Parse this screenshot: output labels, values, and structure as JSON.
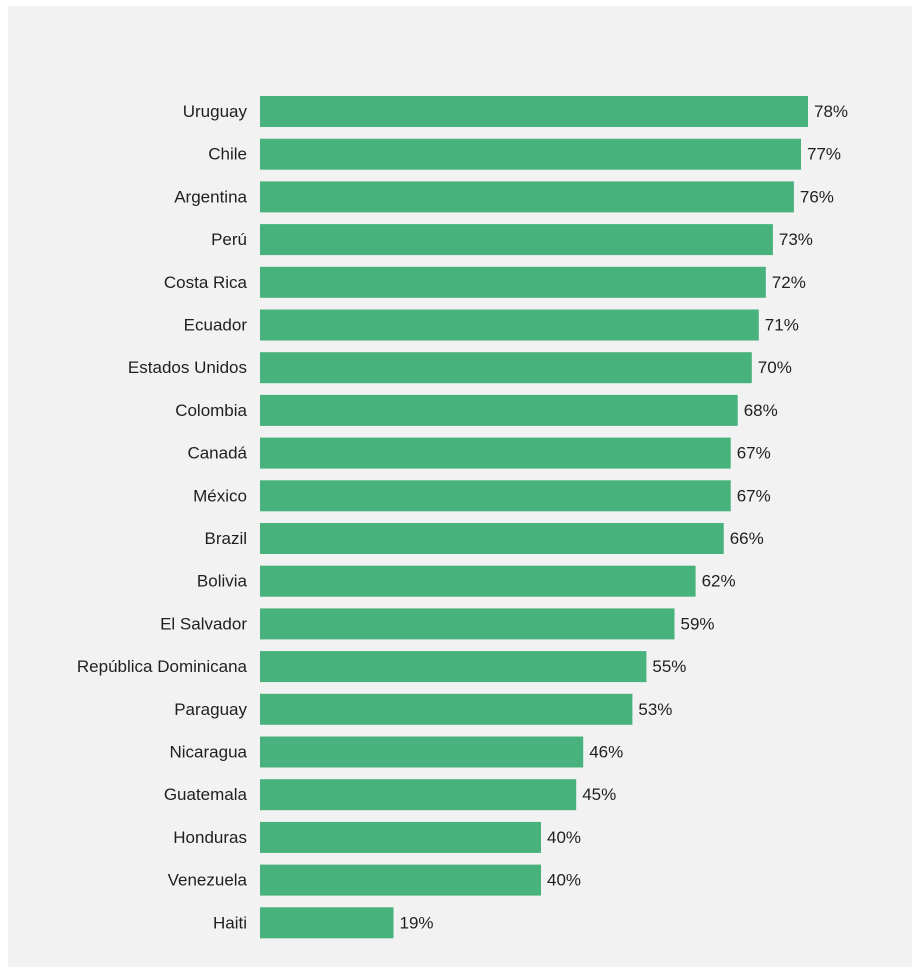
{
  "chart_data": {
    "type": "bar",
    "orientation": "horizontal",
    "categories": [
      "Uruguay",
      "Chile",
      "Argentina",
      "Perú",
      "Costa Rica",
      "Ecuador",
      "Estados Unidos",
      "Colombia",
      "Canadá",
      "México",
      "Brazil",
      "Bolivia",
      "El Salvador",
      "República Dominicana",
      "Paraguay",
      "Nicaragua",
      "Guatemala",
      "Honduras",
      "Venezuela",
      "Haiti"
    ],
    "values": [
      78,
      77,
      76,
      73,
      72,
      71,
      70,
      68,
      67,
      67,
      66,
      62,
      59,
      55,
      53,
      46,
      45,
      40,
      40,
      19
    ],
    "value_labels": [
      "78%",
      "77%",
      "76%",
      "73%",
      "72%",
      "71%",
      "70%",
      "68%",
      "67%",
      "67%",
      "66%",
      "62%",
      "59%",
      "55%",
      "53%",
      "46%",
      "45%",
      "40%",
      "40%",
      "19%"
    ],
    "unit": "%",
    "title": "",
    "xlabel": "",
    "ylabel": "",
    "xlim": [
      0,
      78
    ],
    "grid": false,
    "legend": "none",
    "bar_color": "#48b27d",
    "background_color": "#f2f2f2"
  }
}
